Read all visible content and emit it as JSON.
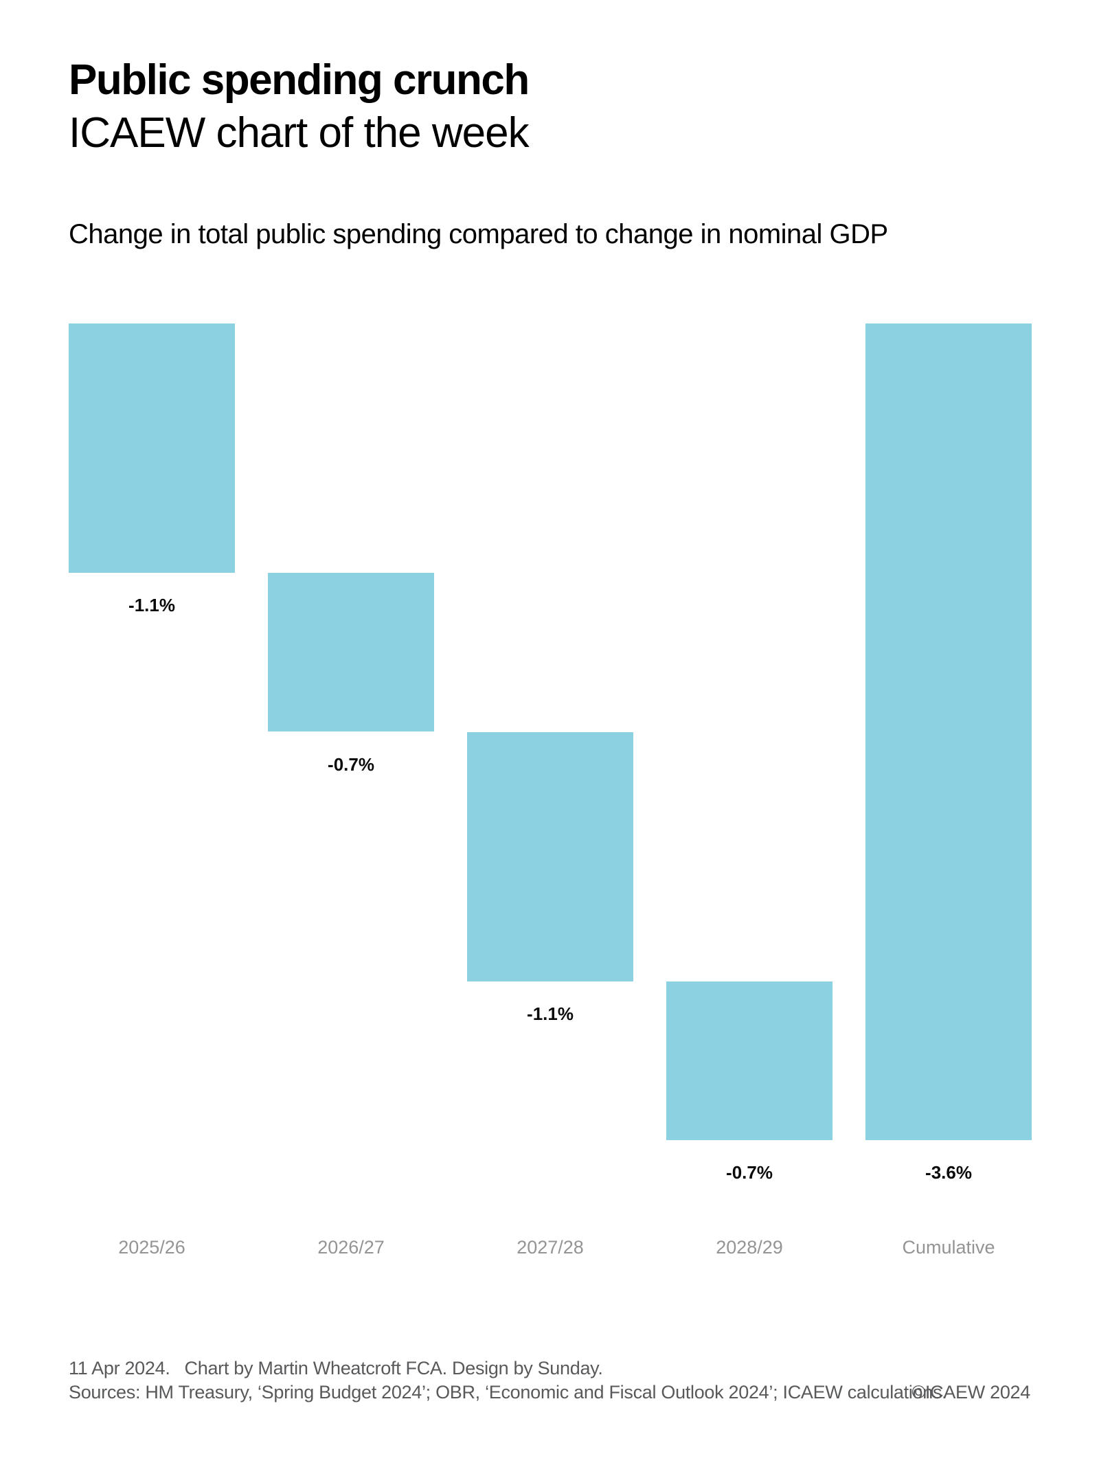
{
  "page": {
    "title": "Public spending crunch",
    "subtitle": "ICAEW chart of the week"
  },
  "chart_data": {
    "type": "bar",
    "subtype": "waterfall",
    "title": "Change in total public spending compared to change in nominal GDP",
    "categories": [
      "2025/26",
      "2026/27",
      "2027/28",
      "2028/29",
      "Cumulative"
    ],
    "values": [
      -1.1,
      -0.7,
      -1.1,
      -0.7,
      -3.6
    ],
    "value_labels": [
      "-1.1%",
      "-0.7%",
      "-1.1%",
      "-0.7%",
      "-3.6%"
    ],
    "cumulative_category": "Cumulative",
    "unit": "%",
    "ylim": [
      -3.6,
      0
    ],
    "grid": false,
    "legend": false,
    "bar_color": "#8bd1e2",
    "value_label_color": "#0a0a0a",
    "category_label_color": "#949494"
  },
  "footer": {
    "date": "11 Apr 2024.",
    "credit": "Chart by Martin Wheatcroft FCA. Design by Sunday.",
    "sources": "Sources: HM Treasury, ‘Spring Budget 2024’; OBR, ‘Economic and Fiscal Outlook 2024’; ICAEW calculations.",
    "copyright": "©ICAEW 2024"
  }
}
